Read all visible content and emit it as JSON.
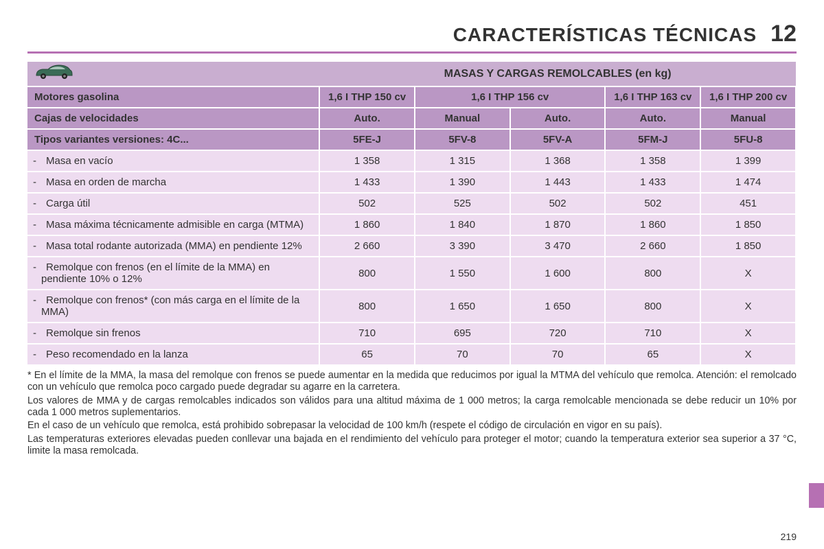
{
  "header": {
    "title": "CARACTERÍSTICAS TÉCNICAS",
    "chapter": "12"
  },
  "table": {
    "title": "MASAS Y CARGAS REMOLCABLES (en kg)",
    "engine_label": "Motores gasolina",
    "engines": [
      "1,6 I THP 150 cv",
      "1,6 I THP 156 cv",
      "1,6 I THP 163 cv",
      "1,6 I THP 200 cv"
    ],
    "gearbox_label": "Cajas de velocidades",
    "gearboxes": [
      "Auto.",
      "Manual",
      "Auto.",
      "Auto.",
      "Manual"
    ],
    "variant_label": "Tipos variantes versiones: 4C...",
    "variants": [
      "5FE-J",
      "5FV-8",
      "5FV-A",
      "5FM-J",
      "5FU-8"
    ],
    "rows": [
      {
        "label": "Masa en vacío",
        "v": [
          "1 358",
          "1 315",
          "1 368",
          "1 358",
          "1 399"
        ]
      },
      {
        "label": "Masa en orden de marcha",
        "v": [
          "1 433",
          "1 390",
          "1 443",
          "1 433",
          "1 474"
        ]
      },
      {
        "label": "Carga útil",
        "v": [
          "502",
          "525",
          "502",
          "502",
          "451"
        ]
      },
      {
        "label": "Masa máxima técnicamente admisible en carga (MTMA)",
        "v": [
          "1 860",
          "1 840",
          "1 870",
          "1 860",
          "1 850"
        ]
      },
      {
        "label": "Masa total rodante autorizada (MMA) en pendiente 12%",
        "v": [
          "2 660",
          "3 390",
          "3 470",
          "2 660",
          "1 850"
        ]
      },
      {
        "label": "Remolque con frenos (en el límite de la MMA) en pendiente 10% o 12%",
        "v": [
          "800",
          "1 550",
          "1 600",
          "800",
          "X"
        ]
      },
      {
        "label": "Remolque con frenos* (con más carga en el límite de la MMA)",
        "v": [
          "800",
          "1 650",
          "1 650",
          "800",
          "X"
        ]
      },
      {
        "label": "Remolque sin frenos",
        "v": [
          "710",
          "695",
          "720",
          "710",
          "X"
        ]
      },
      {
        "label": "Peso recomendado en la lanza",
        "v": [
          "65",
          "70",
          "70",
          "65",
          "X"
        ]
      }
    ]
  },
  "notes": {
    "n1": "* En el límite de la MMA, la masa del remolque con frenos se puede aumentar en la medida que reducimos por igual la MTMA del vehículo que remolca. Atención: el remolcado con un vehículo que remolca poco cargado puede degradar su agarre en la carretera.",
    "n2": "Los valores de MMA y de cargas remolcables indicados son válidos para una altitud máxima de 1 000 metros; la carga remolcable mencionada se debe reducir un 10% por cada 1 000 metros suplementarios.",
    "n3": "En el caso de un vehículo que remolca, está prohibido sobrepasar la velocidad de 100 km/h (respete el código de circulación en vigor en su país).",
    "n4": "Las temperaturas exteriores elevadas pueden conllevar una bajada en el rendimiento del vehículo para proteger el motor; cuando la temperatura exterior sea superior a 37 °C, limite la masa remolcada."
  },
  "page_number": "219",
  "colors": {
    "accent": "#b670b3",
    "header_bg": "#ba97c4",
    "title_bg": "#c9aed0",
    "cell_bg": "#eedcf0"
  },
  "col_widths": {
    "label": "38%",
    "data": "12.4%"
  }
}
